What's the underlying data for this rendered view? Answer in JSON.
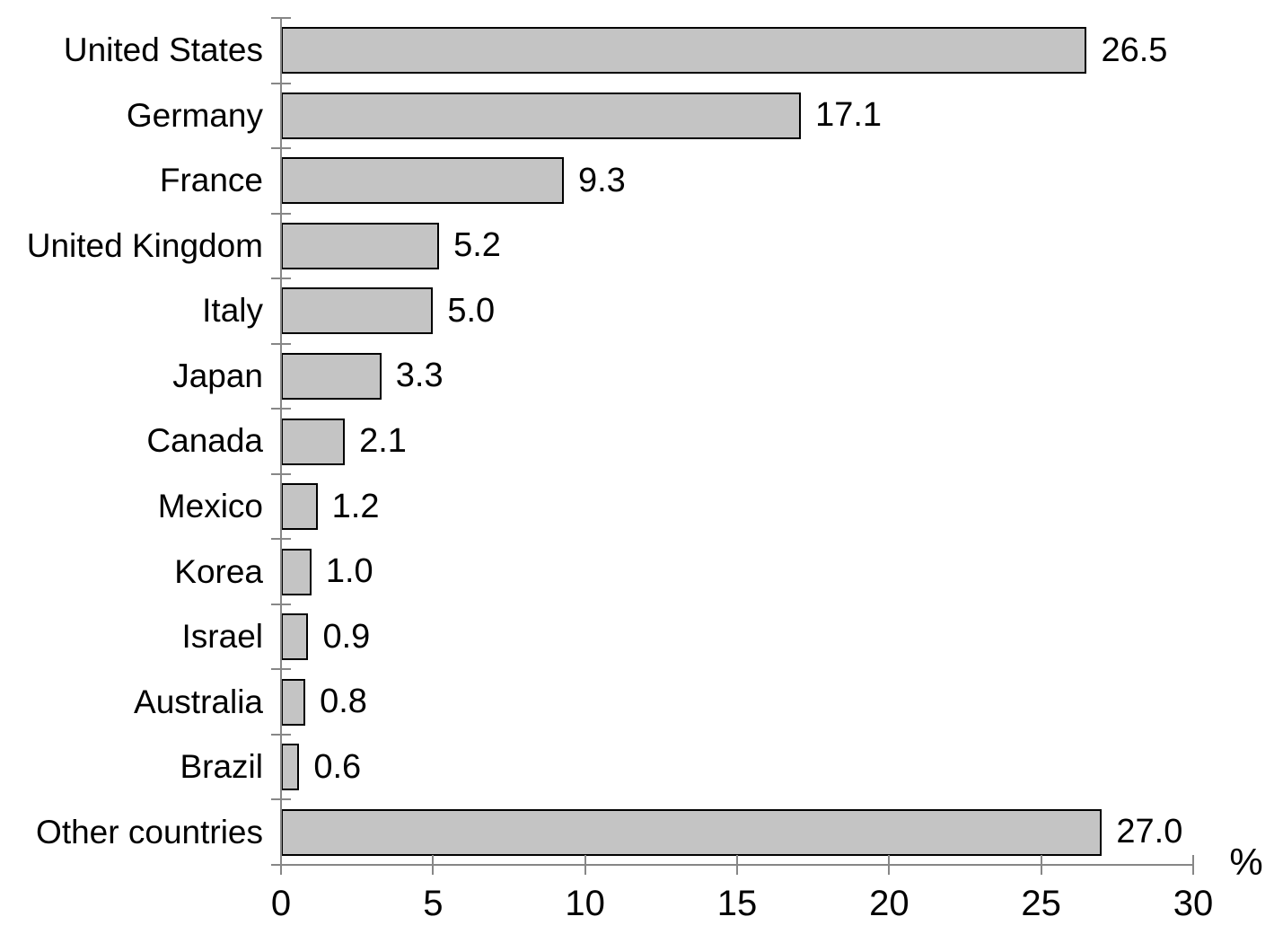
{
  "chart_data": {
    "type": "bar",
    "orientation": "horizontal",
    "title": "",
    "categories": [
      "United States",
      "Germany",
      "France",
      "United Kingdom",
      "Italy",
      "Japan",
      "Canada",
      "Mexico",
      "Korea",
      "Israel",
      "Australia",
      "Brazil",
      "Other countries"
    ],
    "values": [
      26.5,
      17.1,
      9.3,
      5.2,
      5.0,
      3.3,
      2.1,
      1.2,
      1.0,
      0.9,
      0.8,
      0.6,
      27.0
    ],
    "values_display": [
      "26.5",
      "17.1",
      "9.3",
      "5.2",
      "5.0",
      "3.3",
      "2.1",
      "1.2",
      "1.0",
      "0.9",
      "0.8",
      "0.6",
      "27.0"
    ],
    "xlabel": "%",
    "x_ticks": [
      0,
      5,
      10,
      15,
      20,
      25,
      30
    ],
    "xlim": [
      0,
      30
    ],
    "grid": false,
    "legend": false,
    "bar_color": "#c4c4c4",
    "bar_border_color": "#000000",
    "axis_color": "#878787",
    "text_color": "#000000"
  }
}
